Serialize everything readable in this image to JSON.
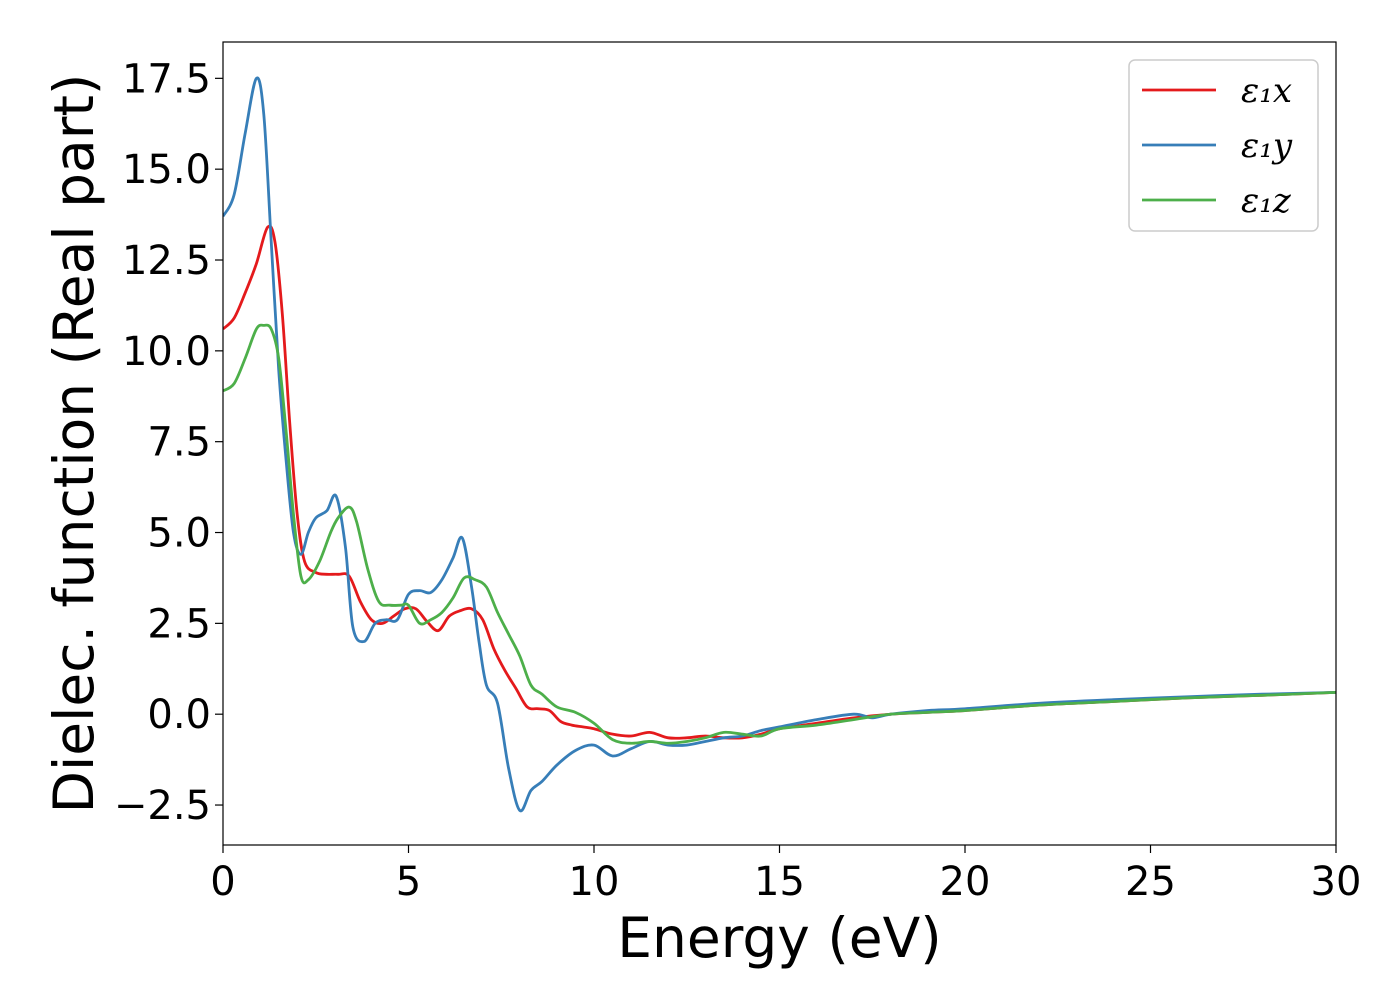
{
  "chart_data": {
    "type": "line",
    "xlabel": "Energy (eV)",
    "ylabel": "Dielec. function (Real part)",
    "xlim": [
      0,
      30
    ],
    "ylim": [
      -3.6,
      18.5
    ],
    "xticks": [
      0,
      5,
      10,
      15,
      20,
      25,
      30
    ],
    "xtick_labels": [
      "0",
      "5",
      "10",
      "15",
      "20",
      "25",
      "30"
    ],
    "yticks": [
      -2.5,
      0.0,
      2.5,
      5.0,
      7.5,
      10.0,
      12.5,
      15.0,
      17.5
    ],
    "ytick_labels": [
      "−2.5",
      "0.0",
      "2.5",
      "5.0",
      "7.5",
      "10.0",
      "12.5",
      "15.0",
      "17.5"
    ],
    "grid": false,
    "legend_position": "top-right",
    "series": [
      {
        "name": "ε₁x",
        "color": "#e41a1c",
        "x": [
          0,
          0.3,
          0.6,
          0.9,
          1.2,
          1.4,
          1.6,
          1.8,
          2.0,
          2.2,
          2.5,
          2.8,
          3.1,
          3.4,
          3.7,
          4.0,
          4.3,
          4.6,
          4.9,
          5.2,
          5.5,
          5.8,
          6.1,
          6.4,
          6.7,
          7.0,
          7.3,
          7.6,
          7.9,
          8.2,
          8.5,
          8.8,
          9.1,
          9.4,
          9.7,
          10.0,
          10.5,
          11.0,
          11.5,
          12.0,
          12.5,
          13.0,
          13.5,
          14.0,
          14.5,
          15.0,
          16.0,
          17.0,
          18.0,
          19.0,
          20.0,
          22.0,
          24.0,
          26.0,
          28.0,
          30.0
        ],
        "y": [
          10.6,
          10.9,
          11.6,
          12.4,
          13.4,
          13.0,
          11.0,
          8.0,
          5.5,
          4.2,
          3.9,
          3.85,
          3.85,
          3.8,
          3.1,
          2.6,
          2.5,
          2.7,
          2.9,
          2.9,
          2.55,
          2.3,
          2.7,
          2.85,
          2.9,
          2.6,
          1.8,
          1.2,
          0.7,
          0.2,
          0.15,
          0.1,
          -0.2,
          -0.3,
          -0.35,
          -0.4,
          -0.55,
          -0.6,
          -0.5,
          -0.65,
          -0.65,
          -0.6,
          -0.65,
          -0.65,
          -0.55,
          -0.4,
          -0.25,
          -0.1,
          0.0,
          0.05,
          0.1,
          0.25,
          0.35,
          0.45,
          0.52,
          0.6
        ]
      },
      {
        "name": "ε₁y",
        "color": "#377eb8",
        "x": [
          0,
          0.3,
          0.6,
          0.9,
          1.1,
          1.3,
          1.5,
          1.7,
          1.9,
          2.1,
          2.3,
          2.5,
          2.8,
          3.05,
          3.3,
          3.5,
          3.8,
          4.1,
          4.4,
          4.7,
          5.0,
          5.3,
          5.6,
          5.9,
          6.2,
          6.45,
          6.7,
          6.9,
          7.1,
          7.4,
          7.7,
          8.0,
          8.3,
          8.6,
          9.0,
          9.5,
          10.0,
          10.5,
          11.0,
          11.5,
          12.0,
          12.5,
          13.0,
          13.5,
          14.0,
          14.5,
          15.0,
          16.0,
          17.0,
          17.5,
          18.0,
          19.0,
          20.0,
          22.0,
          24.0,
          26.0,
          28.0,
          30.0
        ],
        "y": [
          13.7,
          14.3,
          16.0,
          17.5,
          16.5,
          13.0,
          9.5,
          7.0,
          5.0,
          4.4,
          5.0,
          5.4,
          5.6,
          6.0,
          4.6,
          2.4,
          2.0,
          2.5,
          2.6,
          2.6,
          3.3,
          3.4,
          3.35,
          3.7,
          4.3,
          4.85,
          3.5,
          2.0,
          0.8,
          0.3,
          -1.5,
          -2.65,
          -2.1,
          -1.85,
          -1.4,
          -1.0,
          -0.85,
          -1.15,
          -0.95,
          -0.75,
          -0.85,
          -0.85,
          -0.75,
          -0.65,
          -0.6,
          -0.45,
          -0.35,
          -0.15,
          0.0,
          -0.1,
          0.0,
          0.1,
          0.15,
          0.3,
          0.4,
          0.48,
          0.55,
          0.6
        ]
      },
      {
        "name": "ε₁z",
        "color": "#4daf4a",
        "x": [
          0,
          0.3,
          0.6,
          0.9,
          1.1,
          1.3,
          1.5,
          1.7,
          1.9,
          2.1,
          2.3,
          2.6,
          2.9,
          3.1,
          3.4,
          3.6,
          3.9,
          4.2,
          4.5,
          4.8,
          5.0,
          5.3,
          5.6,
          5.9,
          6.2,
          6.5,
          6.8,
          7.1,
          7.4,
          7.7,
          8.0,
          8.3,
          8.6,
          9.0,
          9.5,
          10.0,
          10.5,
          11.0,
          11.5,
          12.0,
          12.5,
          13.0,
          13.5,
          14.0,
          14.5,
          15.0,
          16.0,
          17.0,
          18.0,
          19.0,
          20.0,
          22.0,
          24.0,
          26.0,
          28.0,
          30.0
        ],
        "y": [
          8.9,
          9.1,
          9.8,
          10.6,
          10.7,
          10.6,
          9.8,
          7.8,
          5.5,
          3.8,
          3.7,
          4.2,
          5.0,
          5.4,
          5.7,
          5.3,
          4.0,
          3.1,
          3.0,
          3.0,
          3.0,
          2.5,
          2.6,
          2.8,
          3.2,
          3.75,
          3.7,
          3.5,
          2.8,
          2.2,
          1.6,
          0.8,
          0.55,
          0.2,
          0.05,
          -0.25,
          -0.7,
          -0.8,
          -0.75,
          -0.8,
          -0.75,
          -0.65,
          -0.5,
          -0.55,
          -0.6,
          -0.4,
          -0.3,
          -0.15,
          0.0,
          0.05,
          0.1,
          0.25,
          0.35,
          0.45,
          0.52,
          0.6
        ]
      }
    ]
  }
}
